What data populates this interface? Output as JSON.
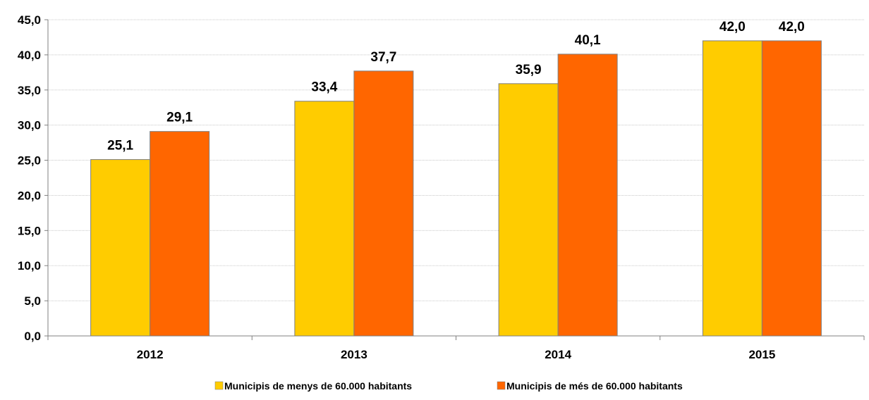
{
  "chart_data": {
    "type": "bar",
    "title": "",
    "xlabel": "",
    "ylabel": "",
    "categories": [
      "2012",
      "2013",
      "2014",
      "2015"
    ],
    "series": [
      {
        "name": "Municipis de menys de 60.000 habitants",
        "values": [
          25.1,
          33.4,
          35.9,
          42.0
        ],
        "labels": [
          "25,1",
          "33,4",
          "35,9",
          "42,0"
        ],
        "color": "#FFCC00"
      },
      {
        "name": "Municipis de més de 60.000 habitants",
        "values": [
          29.1,
          37.7,
          40.1,
          42.0
        ],
        "labels": [
          "29,1",
          "37,7",
          "40,1",
          "42,0"
        ],
        "color": "#FF6600"
      }
    ],
    "ylim": [
      0,
      45
    ],
    "y_ticks": [
      "0,0",
      "5,0",
      "10,0",
      "15,0",
      "20,0",
      "25,0",
      "30,0",
      "35,0",
      "40,0",
      "45,0"
    ],
    "grid": true,
    "legend_position": "bottom"
  }
}
